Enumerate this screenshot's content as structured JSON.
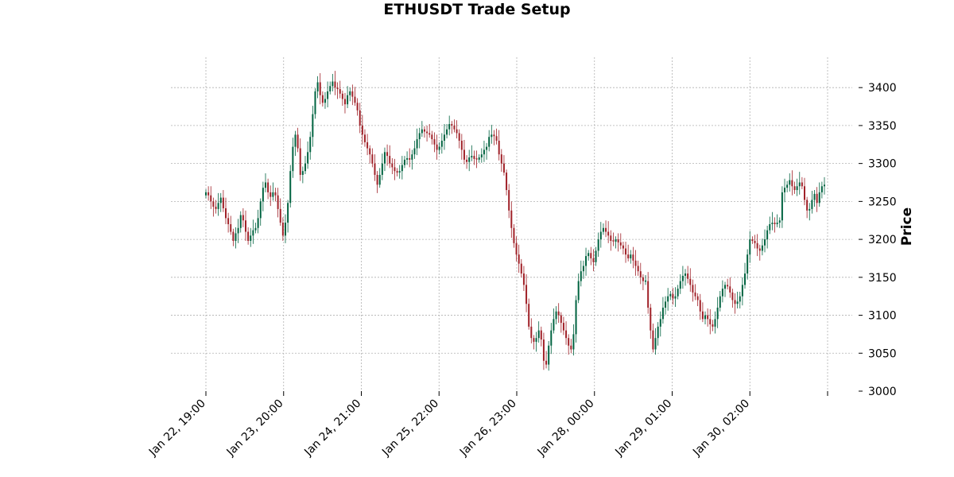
{
  "title": "ETHUSDT Trade Setup",
  "chart_data": {
    "type": "candlestick",
    "title": "ETHUSDT Trade Setup",
    "xlabel": "",
    "ylabel": "Price",
    "ylim": [
      3000,
      3440
    ],
    "y_ticks": [
      3000,
      3050,
      3100,
      3150,
      3200,
      3250,
      3300,
      3350,
      3400
    ],
    "x_ticks": [
      "Jan 22, 19:00",
      "Jan 23, 20:00",
      "Jan 24, 21:00",
      "Jan 25, 22:00",
      "Jan 26, 23:00",
      "Jan 28, 00:00",
      "Jan 29, 01:00",
      "Jan 30, 02:00",
      ""
    ],
    "grid": true,
    "colors": {
      "up": "#006340",
      "down": "#a02128",
      "grid": "#b0b0b0"
    },
    "close_series": [
      3262,
      3258,
      3250,
      3243,
      3240,
      3248,
      3255,
      3241,
      3228,
      3220,
      3210,
      3198,
      3208,
      3215,
      3232,
      3225,
      3210,
      3198,
      3205,
      3212,
      3215,
      3228,
      3250,
      3268,
      3275,
      3262,
      3256,
      3262,
      3258,
      3240,
      3222,
      3205,
      3222,
      3248,
      3290,
      3322,
      3338,
      3320,
      3285,
      3290,
      3300,
      3315,
      3335,
      3365,
      3395,
      3407,
      3390,
      3380,
      3385,
      3395,
      3402,
      3408,
      3400,
      3398,
      3392,
      3385,
      3378,
      3390,
      3395,
      3388,
      3380,
      3370,
      3350,
      3338,
      3328,
      3320,
      3312,
      3300,
      3285,
      3272,
      3285,
      3300,
      3315,
      3310,
      3300,
      3295,
      3290,
      3288,
      3290,
      3298,
      3305,
      3307,
      3305,
      3312,
      3320,
      3332,
      3340,
      3345,
      3342,
      3340,
      3338,
      3332,
      3325,
      3318,
      3322,
      3330,
      3338,
      3345,
      3352,
      3350,
      3345,
      3340,
      3330,
      3318,
      3305,
      3302,
      3308,
      3310,
      3306,
      3305,
      3308,
      3312,
      3318,
      3322,
      3335,
      3338,
      3336,
      3330,
      3312,
      3300,
      3288,
      3265,
      3238,
      3215,
      3195,
      3180,
      3168,
      3155,
      3140,
      3115,
      3085,
      3070,
      3065,
      3070,
      3080,
      3068,
      3040,
      3035,
      3060,
      3080,
      3095,
      3105,
      3100,
      3090,
      3080,
      3070,
      3060,
      3055,
      3075,
      3120,
      3145,
      3158,
      3165,
      3178,
      3182,
      3175,
      3170,
      3185,
      3200,
      3210,
      3215,
      3210,
      3205,
      3198,
      3197,
      3200,
      3196,
      3192,
      3188,
      3180,
      3175,
      3180,
      3172,
      3165,
      3158,
      3150,
      3145,
      3145,
      3110,
      3080,
      3055,
      3070,
      3085,
      3095,
      3110,
      3118,
      3125,
      3128,
      3122,
      3125,
      3135,
      3145,
      3152,
      3155,
      3148,
      3140,
      3130,
      3125,
      3120,
      3105,
      3095,
      3100,
      3095,
      3088,
      3085,
      3095,
      3110,
      3125,
      3135,
      3140,
      3138,
      3130,
      3120,
      3115,
      3118,
      3125,
      3140,
      3155,
      3180,
      3200,
      3198,
      3195,
      3188,
      3185,
      3192,
      3200,
      3212,
      3220,
      3222,
      3220,
      3222,
      3225,
      3262,
      3268,
      3272,
      3278,
      3270,
      3265,
      3270,
      3275,
      3270,
      3252,
      3238,
      3240,
      3252,
      3260,
      3248,
      3262,
      3270,
      3272
    ]
  }
}
